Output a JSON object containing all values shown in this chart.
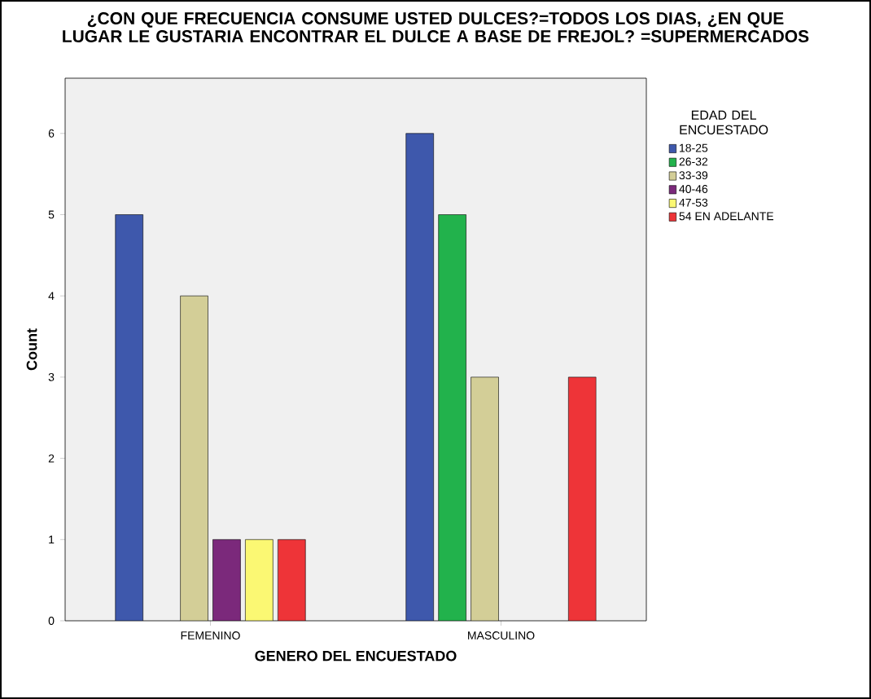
{
  "chart_data": {
    "type": "bar",
    "title": "¿CON QUE FRECUENCIA CONSUME USTED DULCES?=TODOS LOS DIAS, ¿EN QUE LUGAR LE GUSTARIA ENCONTRAR EL DULCE A BASE DE FREJOL? =SUPERMERCADOS",
    "xlabel": "GENERO DEL ENCUESTADO",
    "ylabel": "Count",
    "legend_title": "EDAD DEL ENCUESTADO",
    "categories": [
      "FEMENINO",
      "MASCULINO"
    ],
    "series": [
      {
        "name": "18-25",
        "color": "#3e58ac",
        "values": [
          5,
          6
        ]
      },
      {
        "name": "26-32",
        "color": "#22b24c",
        "values": [
          null,
          5
        ]
      },
      {
        "name": "33-39",
        "color": "#d3ce97",
        "values": [
          4,
          3
        ]
      },
      {
        "name": "40-46",
        "color": "#7b297b",
        "values": [
          1,
          null
        ]
      },
      {
        "name": "47-53",
        "color": "#fbf873",
        "values": [
          1,
          null
        ]
      },
      {
        "name": "54 EN ADELANTE",
        "color": "#ee3438",
        "values": [
          1,
          3
        ]
      }
    ],
    "ylim": [
      0,
      6.68
    ],
    "yticks": [
      0,
      1,
      2,
      3,
      4,
      5,
      6
    ],
    "legend": "right"
  }
}
